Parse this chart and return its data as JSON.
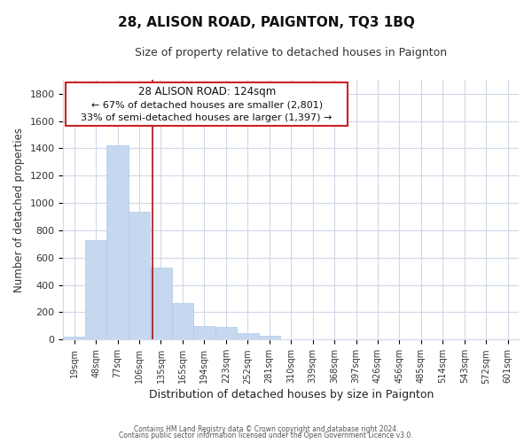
{
  "title": "28, ALISON ROAD, PAIGNTON, TQ3 1BQ",
  "subtitle": "Size of property relative to detached houses in Paignton",
  "xlabel": "Distribution of detached houses by size in Paignton",
  "ylabel": "Number of detached properties",
  "bar_labels": [
    "19sqm",
    "48sqm",
    "77sqm",
    "106sqm",
    "135sqm",
    "165sqm",
    "194sqm",
    "223sqm",
    "252sqm",
    "281sqm",
    "310sqm",
    "339sqm",
    "368sqm",
    "397sqm",
    "426sqm",
    "456sqm",
    "485sqm",
    "514sqm",
    "543sqm",
    "572sqm",
    "601sqm"
  ],
  "bar_values": [
    20,
    730,
    1420,
    935,
    530,
    270,
    100,
    90,
    50,
    25,
    5,
    2,
    1,
    0,
    0,
    0,
    0,
    0,
    0,
    0,
    0
  ],
  "bar_color": "#c5d8f0",
  "bar_edge_color": "#aec8e8",
  "ylim": [
    0,
    1900
  ],
  "yticks": [
    0,
    200,
    400,
    600,
    800,
    1000,
    1200,
    1400,
    1600,
    1800
  ],
  "annotation_title": "28 ALISON ROAD: 124sqm",
  "annotation_line1": "← 67% of detached houses are smaller (2,801)",
  "annotation_line2": "33% of semi-detached houses are larger (1,397) →",
  "property_line_x": 3.345,
  "footer1": "Contains HM Land Registry data © Crown copyright and database right 2024.",
  "footer2": "Contains public sector information licensed under the Open Government Licence v3.0.",
  "background_color": "#ffffff",
  "grid_color": "#d0d8e8",
  "annotation_edge_color": "#cc2222",
  "property_line_color": "#aa1111"
}
